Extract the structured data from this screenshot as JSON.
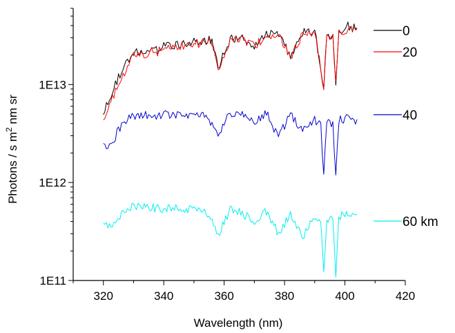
{
  "chart_data": {
    "type": "line",
    "title": "",
    "xlabel": "Wavelength (nm)",
    "ylabel": {
      "prefix": "Photons / s m",
      "superscript": "2",
      "suffix": " nm sr"
    },
    "xlim": [
      310,
      420
    ],
    "ylim": [
      100000000000.0,
      60000000000000.0
    ],
    "y_scale": "log",
    "x_ticks": [
      320,
      340,
      360,
      380,
      400,
      420
    ],
    "x_tick_labels": [
      "320",
      "340",
      "360",
      "380",
      "400",
      "420"
    ],
    "y_ticks": [
      100000000000.0,
      1000000000000.0,
      10000000000000.0
    ],
    "y_tick_labels": [
      "1E11",
      "1E12",
      "1E13"
    ],
    "legend_position": "right",
    "series": [
      {
        "name": "0",
        "color": "#000000",
        "x": [
          320,
          322,
          325,
          328,
          330,
          332,
          334,
          336,
          338,
          340,
          344,
          348,
          352,
          356,
          358,
          362,
          366,
          370,
          374,
          378,
          382,
          386,
          390,
          393,
          394,
          396,
          397,
          398,
          401,
          404
        ],
        "y": [
          5500000000000.0,
          7500000000000.0,
          12000000000000.0,
          18000000000000.0,
          21000000000000.0,
          22000000000000.0,
          20000000000000.0,
          24000000000000.0,
          23000000000000.0,
          25000000000000.0,
          26000000000000.0,
          27000000000000.0,
          28000000000000.0,
          29000000000000.0,
          15000000000000.0,
          30000000000000.0,
          31000000000000.0,
          26000000000000.0,
          33000000000000.0,
          34000000000000.0,
          20000000000000.0,
          35000000000000.0,
          36000000000000.0,
          10000000000000.0,
          35000000000000.0,
          32000000000000.0,
          11000000000000.0,
          36000000000000.0,
          40000000000000.0,
          38000000000000.0
        ]
      },
      {
        "name": "20",
        "color": "#ff0000",
        "x": [
          320,
          322,
          325,
          328,
          330,
          332,
          334,
          336,
          338,
          340,
          344,
          348,
          352,
          356,
          358,
          362,
          366,
          370,
          374,
          378,
          382,
          386,
          390,
          393,
          394,
          396,
          397,
          398,
          401,
          404
        ],
        "y": [
          4500000000000.0,
          6500000000000.0,
          10000000000000.0,
          16000000000000.0,
          20000000000000.0,
          21000000000000.0,
          19000000000000.0,
          23000000000000.0,
          22000000000000.0,
          24000000000000.0,
          25000000000000.0,
          26000000000000.0,
          27000000000000.0,
          28000000000000.0,
          14500000000000.0,
          29000000000000.0,
          30000000000000.0,
          25000000000000.0,
          32000000000000.0,
          33000000000000.0,
          19000000000000.0,
          34000000000000.0,
          35000000000000.0,
          9500000000000.0,
          34000000000000.0,
          31000000000000.0,
          10500000000000.0,
          35000000000000.0,
          38000000000000.0,
          36000000000000.0
        ]
      },
      {
        "name": "40",
        "color": "#0000cc",
        "x": [
          320,
          322,
          325,
          328,
          330,
          334,
          338,
          342,
          346,
          350,
          354,
          358,
          362,
          366,
          370,
          374,
          378,
          382,
          386,
          390,
          392,
          393,
          394,
          396,
          397,
          398,
          401,
          404
        ],
        "y": [
          2600000000000.0,
          2300000000000.0,
          3500000000000.0,
          4500000000000.0,
          4800000000000.0,
          5000000000000.0,
          4900000000000.0,
          5100000000000.0,
          5000000000000.0,
          5200000000000.0,
          5000000000000.0,
          3200000000000.0,
          5100000000000.0,
          5000000000000.0,
          4200000000000.0,
          5200000000000.0,
          3000000000000.0,
          5000000000000.0,
          3500000000000.0,
          4500000000000.0,
          4000000000000.0,
          1150000000000.0,
          4200000000000.0,
          4000000000000.0,
          1100000000000.0,
          4500000000000.0,
          4600000000000.0,
          4400000000000.0
        ]
      },
      {
        "name": "60 km",
        "color": "#00eeee",
        "x": [
          320,
          322,
          325,
          328,
          330,
          334,
          338,
          342,
          346,
          350,
          354,
          358,
          362,
          366,
          370,
          374,
          378,
          382,
          386,
          390,
          392,
          393,
          394,
          396,
          397,
          398,
          401,
          404
        ],
        "y": [
          400000000000.0,
          350000000000.0,
          450000000000.0,
          550000000000.0,
          600000000000.0,
          580000000000.0,
          550000000000.0,
          560000000000.0,
          540000000000.0,
          550000000000.0,
          520000000000.0,
          300000000000.0,
          530000000000.0,
          500000000000.0,
          400000000000.0,
          520000000000.0,
          300000000000.0,
          500000000000.0,
          280000000000.0,
          450000000000.0,
          420000000000.0,
          120000000000.0,
          430000000000.0,
          420000000000.0,
          115000000000.0,
          460000000000.0,
          480000000000.0,
          470000000000.0
        ]
      }
    ]
  }
}
